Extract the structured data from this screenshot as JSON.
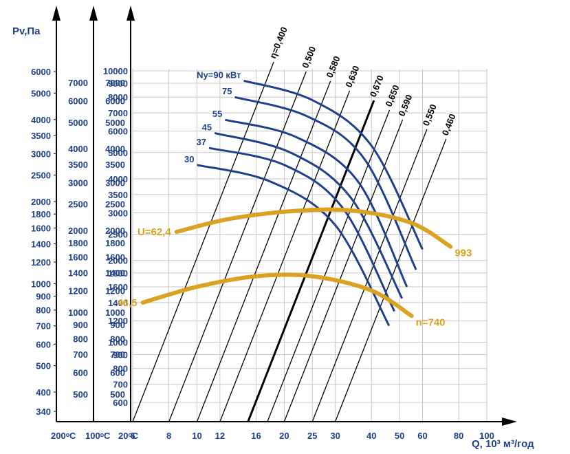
{
  "chart_data": {
    "type": "line",
    "title": "",
    "xlabel": "Q, 10³ м³/год",
    "ylabel": "Pv,Па",
    "x_scale": "log",
    "y_scale": "log",
    "xlim": [
      6,
      100
    ],
    "x_ticks": [
      "6",
      "8",
      "10",
      "12",
      "16",
      "20",
      "25",
      "30",
      "40",
      "50",
      "60",
      "80",
      "100"
    ],
    "pv_ticks": [
      "6000",
      "5000",
      "4000",
      "3500",
      "3000",
      "2500",
      "2000",
      "1800",
      "1600",
      "1400",
      "1200",
      "1000",
      "900",
      "800",
      "700",
      "600",
      "500",
      "400",
      "340"
    ],
    "t200_ticks": [
      "7000",
      "6000",
      "5000",
      "4000",
      "3500",
      "3000",
      "2500",
      "2000",
      "1800",
      "1600",
      "1400",
      "1200",
      "1000",
      "900",
      "800",
      "700",
      "600",
      "500"
    ],
    "t100_ticks": [
      "7000",
      "6000",
      "5000",
      "4000",
      "3500",
      "3000",
      "2500",
      "2000",
      "1800",
      "1600",
      "1400",
      "1200",
      "1000",
      "900",
      "800",
      "700",
      "600",
      "500"
    ],
    "t20_ticks": [
      "10000",
      "9000",
      "8000",
      "7000",
      "6000",
      "5000",
      "4000",
      "3500",
      "3000",
      "2500",
      "2000",
      "1800",
      "1600",
      "1400",
      "1200",
      "1000",
      "900",
      "800",
      "700",
      "600"
    ],
    "axis_labels": {
      "temp200": "200ᵒC",
      "temp100": "100ᵒC",
      "temp20": "20ᵒC",
      "pv_unit": "Pv,Па",
      "q_unit": "Q, 10³ м³/год"
    },
    "efficiency_lines": [
      {
        "label": "η=0,400",
        "q_at_base": 6
      },
      {
        "label": "0,500",
        "q_at_base": 8
      },
      {
        "label": "0,580",
        "q_at_base": 10
      },
      {
        "label": "0,630",
        "q_at_base": 12
      },
      {
        "label": "0,670",
        "q_at_base": 15,
        "bold": true
      },
      {
        "label": "0,650",
        "q_at_base": 17.5
      },
      {
        "label": "0,590",
        "q_at_base": 20
      },
      {
        "label": "0,550",
        "q_at_base": 25
      },
      {
        "label": "0,460",
        "q_at_base": 30
      }
    ],
    "power_curves": [
      {
        "name": "Ny=90 кВт",
        "points": [
          [
            14.5,
            9200
          ],
          [
            25,
            7800
          ],
          [
            40,
            5300
          ],
          [
            60,
            2200
          ]
        ]
      },
      {
        "name": "75",
        "points": [
          [
            13.5,
            8000
          ],
          [
            24,
            6800
          ],
          [
            38,
            4700
          ],
          [
            57,
            1850
          ]
        ]
      },
      {
        "name": "55",
        "points": [
          [
            12.5,
            6600
          ],
          [
            22,
            5700
          ],
          [
            36,
            3900
          ],
          [
            53,
            1600
          ]
        ]
      },
      {
        "name": "45",
        "points": [
          [
            11.5,
            5900
          ],
          [
            21,
            5000
          ],
          [
            34,
            3400
          ],
          [
            51,
            1450
          ]
        ]
      },
      {
        "name": "37",
        "points": [
          [
            11,
            5200
          ],
          [
            20,
            4500
          ],
          [
            32,
            3100
          ],
          [
            48,
            1300
          ]
        ]
      },
      {
        "name": "30",
        "points": [
          [
            10,
            4500
          ],
          [
            18,
            3900
          ],
          [
            30,
            2700
          ],
          [
            46,
            1150
          ]
        ]
      }
    ],
    "speed_curves": [
      {
        "name": "n=740",
        "left_label": "46,5",
        "points": [
          [
            6.5,
            1400
          ],
          [
            10,
            1600
          ],
          [
            16,
            1750
          ],
          [
            25,
            1750
          ],
          [
            40,
            1550
          ],
          [
            55,
            1250
          ]
        ]
      },
      {
        "name": "993",
        "left_label": "U=62,4",
        "points": [
          [
            8.5,
            2550
          ],
          [
            13,
            2850
          ],
          [
            22,
            3050
          ],
          [
            35,
            3050
          ],
          [
            55,
            2750
          ],
          [
            75,
            2250
          ]
        ]
      }
    ]
  },
  "colors": {
    "axis": "#1f3f8a",
    "curve": "#1f3f8a",
    "speed": "#d9a321",
    "grid": "#c8c8c8"
  }
}
